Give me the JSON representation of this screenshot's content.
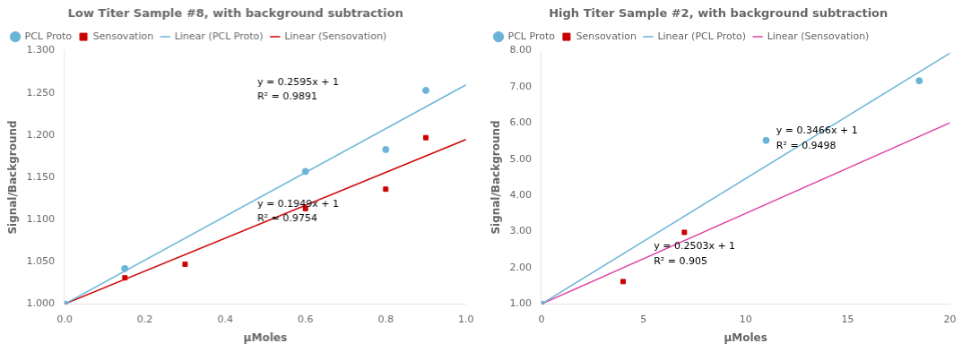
{
  "chart_data": [
    {
      "type": "scatter",
      "title": "Low Titer Sample #8, with background subtraction",
      "xlabel": "μMoles",
      "ylabel": "Signal/Background",
      "xlim": [
        0,
        1.0
      ],
      "ylim": [
        1.0,
        1.3
      ],
      "xticks": [
        {
          "value": 0,
          "label": "0.0"
        },
        0.2,
        0.4,
        0.6,
        0.8,
        {
          "value": 1.0,
          "label": "1.0"
        }
      ],
      "yticks": [
        {
          "value": 1.0,
          "label": "1.000"
        },
        {
          "value": 1.05,
          "label": "1.050"
        },
        {
          "value": 1.1,
          "label": "1.100"
        },
        {
          "value": 1.15,
          "label": "1.150"
        },
        {
          "value": 1.2,
          "label": "1.200"
        },
        {
          "value": 1.25,
          "label": "1.250"
        },
        {
          "value": 1.3,
          "label": "1.300"
        }
      ],
      "grid": false,
      "legend": "upper left",
      "series": [
        {
          "name": "PCL Proto",
          "type": "scatter",
          "marker": "circle",
          "color": "#6ab4d8",
          "x": [
            0,
            0.15,
            0.6,
            0.8,
            0.9
          ],
          "values": [
            1.0,
            1.042,
            1.157,
            1.183,
            1.253
          ]
        },
        {
          "name": "Sensovation",
          "type": "scatter",
          "marker": "square",
          "color": "#cc0000",
          "x": [
            0,
            0.15,
            0.3,
            0.6,
            0.8,
            0.9
          ],
          "values": [
            1.0,
            1.031,
            1.047,
            1.113,
            1.136,
            1.197
          ]
        },
        {
          "name": "Linear (PCL Proto)",
          "type": "line",
          "line_style": "solid",
          "color": "#6ab4d8",
          "x": [
            0,
            1.0
          ],
          "values": [
            1,
            1.2595
          ]
        },
        {
          "name": "Linear (Sensovation)",
          "type": "line",
          "line_style": "solid",
          "color": "#cc0000",
          "x": [
            0,
            1.0
          ],
          "values": [
            1,
            1.1949
          ]
        }
      ],
      "annotations": [
        {
          "text": "y = 0.2595x + 1\nR² = 0.9891",
          "x": 0.48,
          "y": 1.242
        },
        {
          "text": "y = 0.1949x + 1\nR² = 0.9754",
          "x": 0.48,
          "y": 1.098
        }
      ]
    },
    {
      "type": "scatter",
      "title": "High Titer Sample #2, with background subtraction",
      "xlabel": "μMoles",
      "ylabel": "Signal/Background",
      "xlim": [
        0,
        20
      ],
      "ylim": [
        1.0,
        8.0
      ],
      "xticks": [
        0,
        5,
        10,
        15,
        20
      ],
      "yticks": [
        {
          "value": 1.0,
          "label": "1.00"
        },
        {
          "value": 2.0,
          "label": "2.00"
        },
        {
          "value": 3.0,
          "label": "3.00"
        },
        {
          "value": 4.0,
          "label": "4.00"
        },
        {
          "value": 5.0,
          "label": "5.00"
        },
        {
          "value": 6.0,
          "label": "6.00"
        },
        {
          "value": 7.0,
          "label": "7.00"
        },
        {
          "value": 8.0,
          "label": "8.00"
        }
      ],
      "grid": false,
      "legend": "upper left",
      "series": [
        {
          "name": "PCL Proto",
          "type": "scatter",
          "marker": "circle",
          "color": "#6ab4d8",
          "x": [
            0,
            11,
            18.5
          ],
          "values": [
            1.0,
            5.52,
            7.17
          ]
        },
        {
          "name": "Sensovation",
          "type": "scatter",
          "marker": "square",
          "color": "#cc0000",
          "x": [
            0,
            4,
            7
          ],
          "values": [
            1.0,
            1.62,
            2.98
          ]
        },
        {
          "name": "Linear (PCL Proto)",
          "type": "line",
          "line_style": "solid",
          "color": "#6ab4d8",
          "x": [
            0,
            20
          ],
          "values": [
            1,
            7.932
          ]
        },
        {
          "name": "Linear (Sensovation)",
          "type": "line",
          "line_style": "solid",
          "color": "#e040a0",
          "x": [
            0,
            20
          ],
          "values": [
            1,
            6.006
          ]
        }
      ],
      "annotations": [
        {
          "text": "y = 0.3466x + 1\nR² = 0.9498",
          "x": 11.5,
          "y": 5.3
        },
        {
          "text": "y = 0.2503x + 1\nR² = 0.905",
          "x": 5.5,
          "y": 2.1
        }
      ]
    }
  ]
}
